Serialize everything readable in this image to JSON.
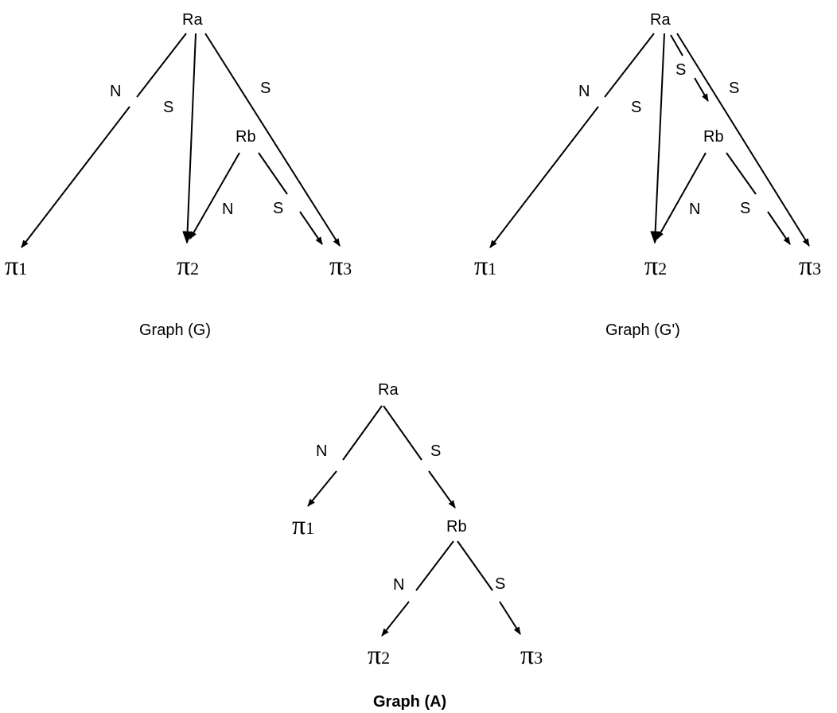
{
  "graph_g": {
    "caption": "Graph (G)",
    "node_ra": "Ra",
    "node_rb": "Rb",
    "label_n_ra": "N",
    "label_s_ra_pi2": "S",
    "label_s_ra_pi3": "S",
    "label_n_rb": "N",
    "label_s_rb": "S",
    "pi_symbol": "π",
    "pi1_sub": "1",
    "pi2_sub": "2",
    "pi3_sub": "3"
  },
  "graph_g_prime": {
    "caption": "Graph (G')",
    "node_ra": "Ra",
    "node_rb": "Rb",
    "label_n_ra": "N",
    "label_s_ra_pi2": "S",
    "label_s_ra_rb": "S",
    "label_s_ra_pi3": "S",
    "label_n_rb": "N",
    "label_s_rb": "S",
    "pi_symbol": "π",
    "pi1_sub": "1",
    "pi2_sub": "2",
    "pi3_sub": "3"
  },
  "graph_a": {
    "caption": "Graph (A)",
    "node_ra": "Ra",
    "node_rb": "Rb",
    "label_n_ra": "N",
    "label_s_ra": "S",
    "label_n_rb": "N",
    "label_s_rb": "S",
    "pi_symbol": "π",
    "pi1_sub": "1",
    "pi2_sub": "2",
    "pi3_sub": "3"
  }
}
